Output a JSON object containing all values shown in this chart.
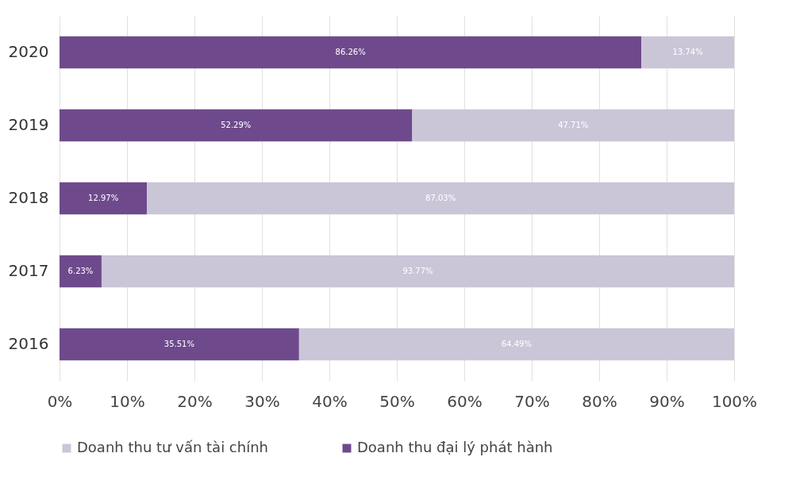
{
  "chart_data": {
    "type": "bar",
    "orientation": "horizontal",
    "stacked": true,
    "categories": [
      "2020",
      "2019",
      "2018",
      "2017",
      "2016"
    ],
    "series": [
      {
        "name": "Doanh thu đại lý phát hành",
        "color": "#6e4a8c",
        "values": [
          86.26,
          52.29,
          12.97,
          6.23,
          35.51
        ]
      },
      {
        "name": "Doanh thu tư vấn tài chính",
        "color": "#cbc5d8",
        "values": [
          13.74,
          47.71,
          87.03,
          93.77,
          64.49
        ]
      }
    ],
    "xlim": [
      0,
      100
    ],
    "xticks": [
      {
        "value": 0,
        "label": "0%"
      },
      {
        "value": 10,
        "label": "10%"
      },
      {
        "value": 20,
        "label": "20%"
      },
      {
        "value": 30,
        "label": "30%"
      },
      {
        "value": 40,
        "label": "40%"
      },
      {
        "value": 50,
        "label": "50%"
      },
      {
        "value": 60,
        "label": "60%"
      },
      {
        "value": 70,
        "label": "70%"
      },
      {
        "value": 80,
        "label": "80%"
      },
      {
        "value": 90,
        "label": "90%"
      },
      {
        "value": 100,
        "label": "100%"
      }
    ],
    "value_labels": [
      [
        "86.26%",
        "52.29%",
        "12.97%",
        "6.23%",
        "35.51%"
      ],
      [
        "13.74%",
        "47.71%",
        "87.03%",
        "93.77%",
        "64.49%"
      ]
    ],
    "grid": "x",
    "legend": "bottom"
  }
}
